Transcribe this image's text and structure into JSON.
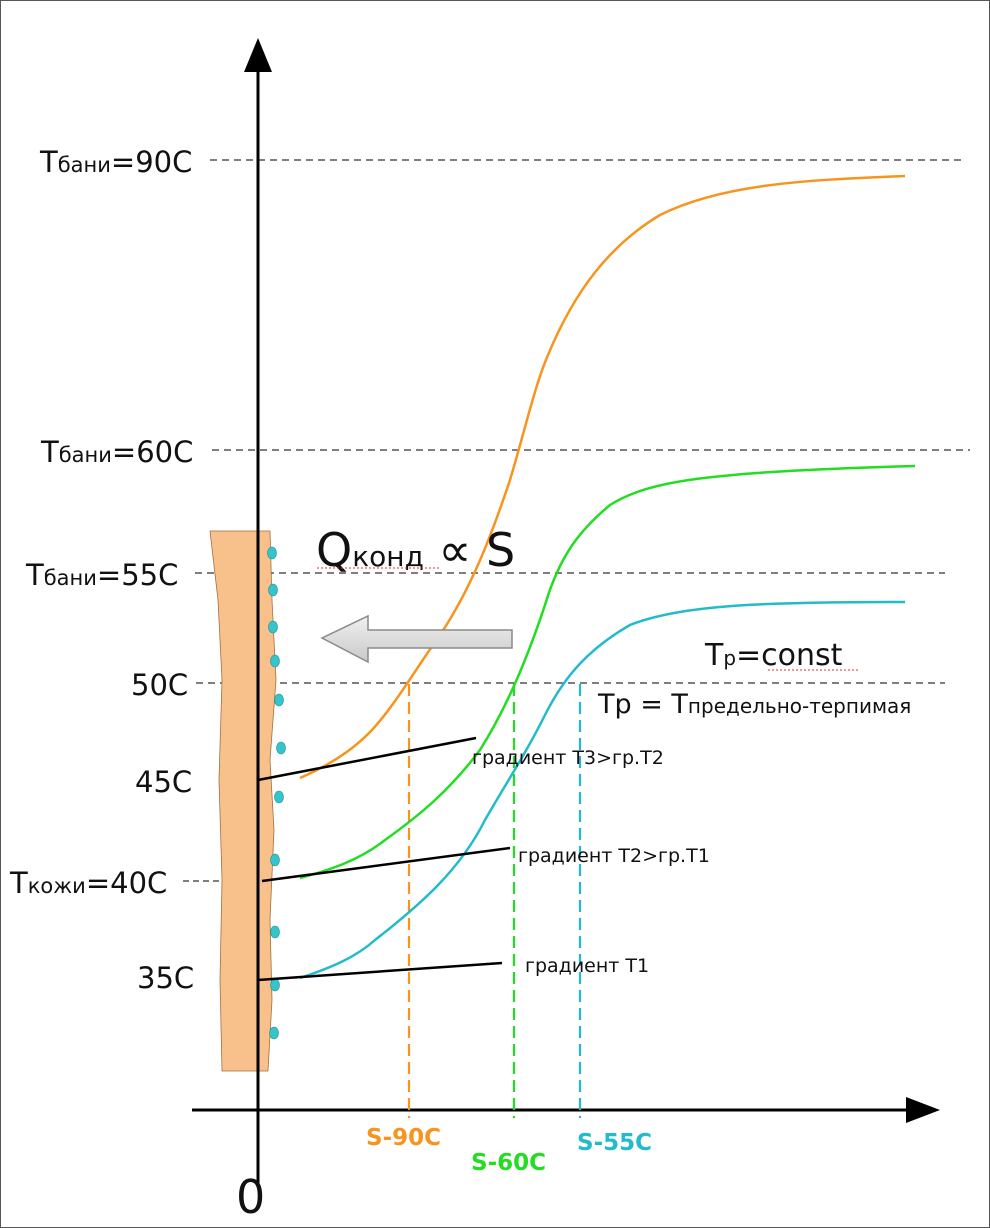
{
  "levels": [
    {
      "main": "T",
      "sub": "бани",
      "rest": "=90C"
    },
    {
      "main": "T",
      "sub": "бани",
      "rest": "=60C"
    },
    {
      "main": "T",
      "sub": "бани",
      "rest": "=55C"
    },
    {
      "main": "",
      "sub": "",
      "rest": "50C"
    },
    {
      "main": "",
      "sub": "",
      "rest": "45C"
    },
    {
      "main": "T",
      "sub": "кожи",
      "rest": "=40C"
    },
    {
      "main": "",
      "sub": "",
      "rest": "35C"
    }
  ],
  "origin_label": "0",
  "heat_flow": {
    "main": "Q",
    "sub": "конд",
    "rest": " ∝ S"
  },
  "tp_const": {
    "main": "T",
    "sub": "p",
    "rest": "=const"
  },
  "tp_def": {
    "main": "Tp = T",
    "sub": "предельно-терпимая"
  },
  "gradients": [
    "градиент T3>гр.T2",
    "градиент T2>гр.T1",
    "градиент T1"
  ],
  "s_labels": [
    "S-90C",
    "S-60C",
    "S-55C"
  ],
  "colors": {
    "orange": "#f7941d",
    "green": "#22dd22",
    "cyan": "#22bbcc",
    "skin": "#f8c08a"
  }
}
